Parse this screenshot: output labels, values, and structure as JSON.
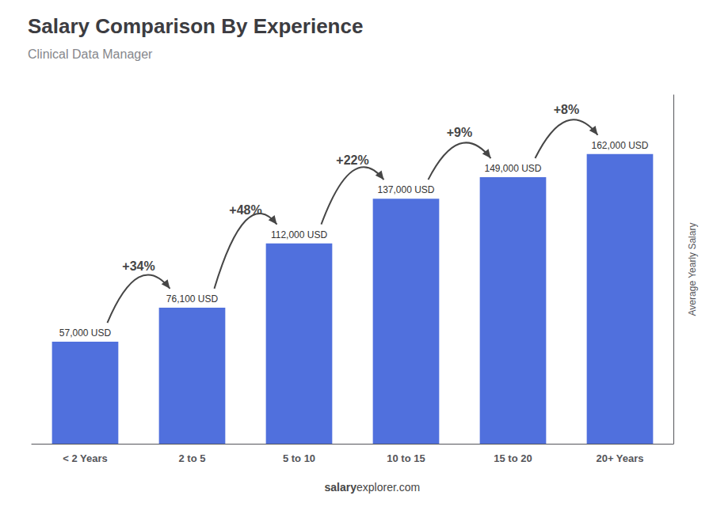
{
  "chart_data": {
    "type": "bar",
    "title": "Salary Comparison By Experience",
    "subtitle": "Clinical Data Manager",
    "categories": [
      "< 2 Years",
      "2 to 5",
      "5 to 10",
      "10 to 15",
      "15 to 20",
      "20+ Years"
    ],
    "values": [
      57000,
      76100,
      112000,
      137000,
      149000,
      162000
    ],
    "value_labels": [
      "57,000 USD",
      "76,100 USD",
      "112,000 USD",
      "137,000 USD",
      "149,000 USD",
      "162,000 USD"
    ],
    "data_labels": true,
    "ylabel": "Average Yearly Salary",
    "ylim": [
      0,
      195000
    ],
    "tick_labels": "x",
    "grid": false,
    "annotations": [
      {
        "text": "+34%",
        "from": "< 2 Years",
        "to": "2 to 5"
      },
      {
        "text": "+48%",
        "from": "2 to 5",
        "to": "5 to 10"
      },
      {
        "text": "+22%",
        "from": "5 to 10",
        "to": "10 to 15"
      },
      {
        "text": "+9%",
        "from": "10 to 15",
        "to": "15 to 20"
      },
      {
        "text": "+8%",
        "from": "15 to 20",
        "to": "20+ Years"
      }
    ],
    "footer": [
      "salary",
      "explorer.com"
    ]
  }
}
